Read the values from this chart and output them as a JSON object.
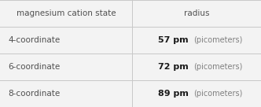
{
  "col_headers": [
    "magnesium cation state",
    "radius"
  ],
  "rows": [
    [
      "4-coordinate",
      "57 pm",
      "(picometers)"
    ],
    [
      "6-coordinate",
      "72 pm",
      "(picometers)"
    ],
    [
      "8-coordinate",
      "89 pm",
      "(picometers)"
    ]
  ],
  "background_color": "#f3f3f3",
  "header_text_color": "#505050",
  "row_text_color": "#505050",
  "line_color": "#c8c8c8",
  "bold_color": "#1a1a1a",
  "paren_color": "#808080",
  "figsize": [
    3.32,
    1.36
  ],
  "dpi": 100,
  "col_split": 0.505
}
